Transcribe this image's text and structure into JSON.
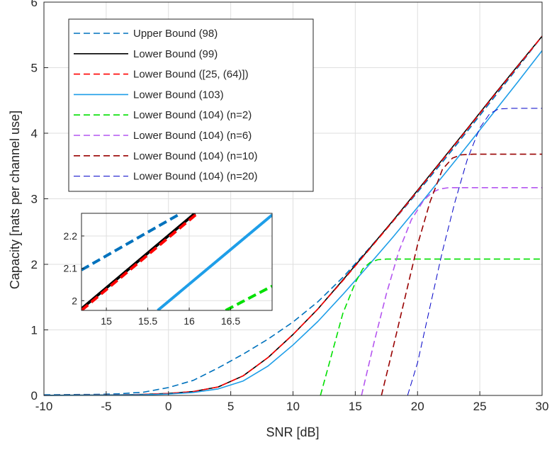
{
  "chart_data": [
    {
      "type": "line",
      "title": "",
      "xlabel": "SNR [dB]",
      "ylabel": "Capacity [nats per channel use]",
      "xlim": [
        -10,
        30
      ],
      "ylim": [
        0,
        6
      ],
      "xticks": [
        "-10",
        "-5",
        "0",
        "5",
        "10",
        "15",
        "20",
        "25",
        "30"
      ],
      "yticks": [
        "0",
        "1",
        "2",
        "3",
        "4",
        "5",
        "6"
      ],
      "grid": true,
      "legend_position": "top-left",
      "series": [
        {
          "name": "Upper Bound (98)",
          "color": "#0072BD",
          "style": "dashed",
          "x": [
            -10,
            -6,
            -4,
            -2,
            0,
            2,
            4,
            6,
            8,
            10,
            12,
            14,
            16,
            18,
            20,
            22,
            24,
            26,
            28,
            30
          ],
          "y": [
            0.01,
            0.015,
            0.025,
            0.05,
            0.12,
            0.23,
            0.42,
            0.63,
            0.86,
            1.12,
            1.43,
            1.8,
            2.22,
            2.65,
            3.1,
            3.56,
            4.03,
            4.51,
            4.99,
            5.48
          ]
        },
        {
          "name": "Lower Bound (99)",
          "color": "#000000",
          "style": "solid",
          "x": [
            -10,
            -6,
            -4,
            -2,
            0,
            2,
            4,
            6,
            8,
            10,
            12,
            14,
            16,
            18,
            20,
            22,
            24,
            26,
            28,
            30
          ],
          "y": [
            0.002,
            0.005,
            0.008,
            0.015,
            0.03,
            0.06,
            0.13,
            0.3,
            0.58,
            0.93,
            1.32,
            1.76,
            2.21,
            2.66,
            3.13,
            3.6,
            4.07,
            4.55,
            5.02,
            5.48
          ]
        },
        {
          "name": "Lower Bound ([25, (64)])",
          "color": "#FF0000",
          "style": "dashed",
          "x": [
            -10,
            -6,
            -4,
            -2,
            0,
            2,
            4,
            6,
            8,
            10,
            12,
            14,
            16,
            18,
            20,
            22,
            24,
            26,
            28,
            30
          ],
          "y": [
            0.002,
            0.005,
            0.008,
            0.015,
            0.03,
            0.06,
            0.13,
            0.3,
            0.58,
            0.93,
            1.32,
            1.75,
            2.2,
            2.65,
            3.12,
            3.59,
            4.06,
            4.54,
            5.01,
            5.48
          ]
        },
        {
          "name": "Lower Bound (103)",
          "color": "#1E9EE8",
          "style": "solid",
          "x": [
            -10,
            -6,
            -4,
            -2,
            0,
            2,
            4,
            6,
            8,
            10,
            12,
            14,
            16,
            18,
            20,
            22,
            24,
            26,
            28,
            30
          ],
          "y": [
            0.001,
            0.003,
            0.005,
            0.01,
            0.02,
            0.045,
            0.1,
            0.22,
            0.45,
            0.77,
            1.13,
            1.54,
            1.97,
            2.41,
            2.87,
            3.34,
            3.81,
            4.29,
            4.77,
            5.26
          ]
        },
        {
          "name": "Lower Bound (104) (n=2)",
          "color": "#00E000",
          "style": "dashed",
          "x": [
            12.2,
            13,
            14,
            15,
            15.6,
            16.2,
            16.8,
            17.5,
            20,
            25,
            30
          ],
          "y": [
            0,
            0.55,
            1.25,
            1.72,
            1.93,
            2.03,
            2.07,
            2.08,
            2.08,
            2.08,
            2.08
          ]
        },
        {
          "name": "Lower Bound (104) (n=6)",
          "color": "#B455F0",
          "style": "dashed",
          "x": [
            15.5,
            16.5,
            17.5,
            18.5,
            19.5,
            20.5,
            21.2,
            21.8,
            22.5,
            25,
            30
          ],
          "y": [
            0,
            0.8,
            1.55,
            2.2,
            2.68,
            2.98,
            3.1,
            3.15,
            3.17,
            3.17,
            3.17
          ]
        },
        {
          "name": "Lower Bound (104) (n=10)",
          "color": "#990000",
          "style": "dashed",
          "x": [
            17.1,
            18,
            19,
            20,
            21,
            22,
            22.8,
            23.5,
            24.5,
            30
          ],
          "y": [
            0,
            0.7,
            1.5,
            2.3,
            2.95,
            3.45,
            3.62,
            3.67,
            3.68,
            3.68
          ]
        },
        {
          "name": "Lower Bound (104) (n=20)",
          "color": "#0000C8",
          "style": "dashed-thin",
          "x": [
            19.2,
            20,
            21,
            22,
            23,
            24,
            25,
            25.8,
            26.5,
            27.5,
            30
          ],
          "y": [
            0,
            0.5,
            1.35,
            2.2,
            2.95,
            3.6,
            4.08,
            4.3,
            4.37,
            4.38,
            4.38
          ]
        }
      ]
    },
    {
      "type": "line",
      "title": "",
      "xlim": [
        14.7,
        17
      ],
      "ylim": [
        1.97,
        2.27
      ],
      "xticks": [
        "15",
        "15.5",
        "16",
        "16.5"
      ],
      "yticks": [
        "2",
        "2.1",
        "2.2"
      ],
      "grid": true,
      "series": [
        {
          "name": "Upper Bound (98)",
          "color": "#0072BD",
          "style": "dashed",
          "x": [
            14.7,
            15.9
          ],
          "y": [
            2.095,
            2.27
          ]
        },
        {
          "name": "Lower Bound (99)",
          "color": "#000000",
          "style": "solid",
          "x": [
            14.7,
            16.07
          ],
          "y": [
            1.975,
            2.27
          ]
        },
        {
          "name": "Lower Bound ([25, (64)])",
          "color": "#FF0000",
          "style": "dashed",
          "x": [
            14.7,
            16.1
          ],
          "y": [
            1.97,
            2.27
          ]
        },
        {
          "name": "Lower Bound (103)",
          "color": "#1E9EE8",
          "style": "solid",
          "x": [
            15.62,
            17
          ],
          "y": [
            1.97,
            2.265
          ]
        },
        {
          "name": "Lower Bound (104) (n=2)",
          "color": "#00E000",
          "style": "dashed",
          "x": [
            16.44,
            17
          ],
          "y": [
            1.97,
            2.045
          ]
        }
      ]
    }
  ]
}
